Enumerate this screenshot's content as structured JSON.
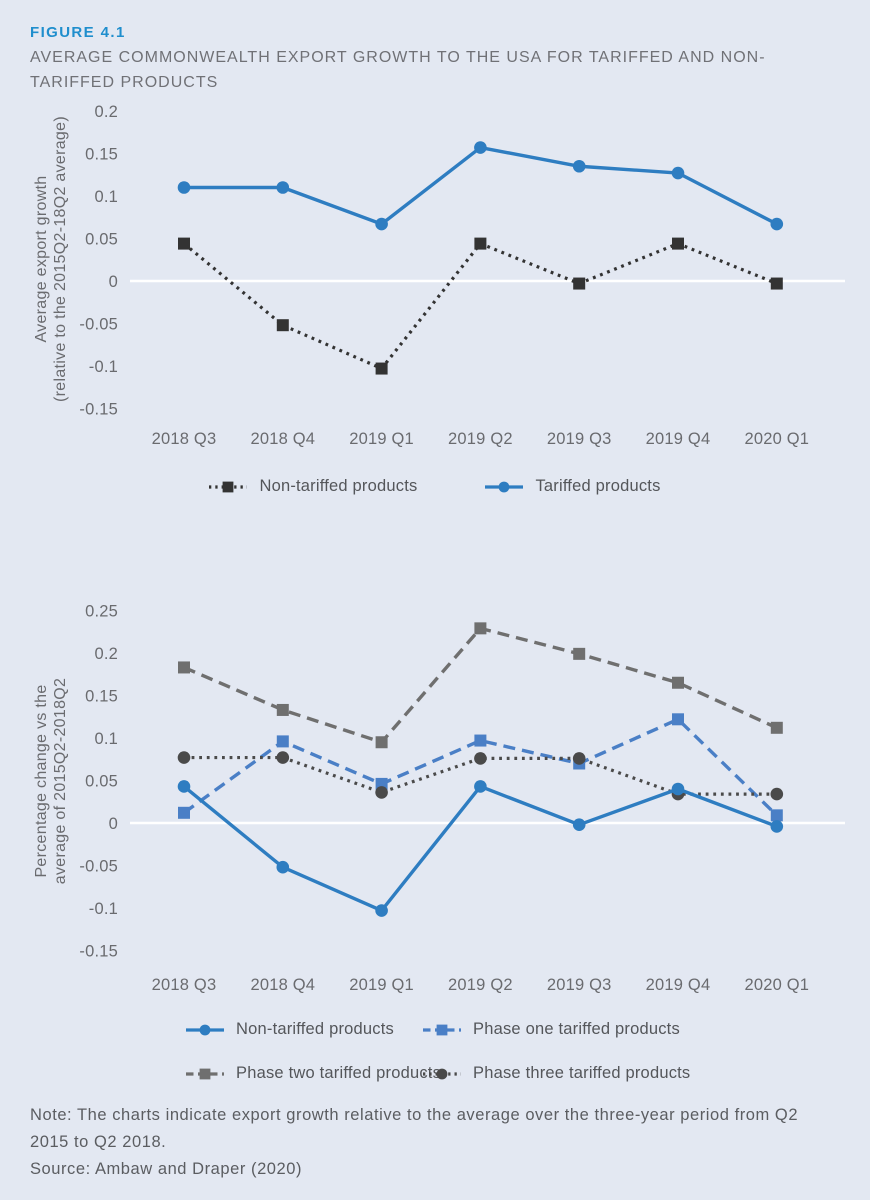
{
  "figure": {
    "label": "FIGURE 4.1",
    "title": "AVERAGE COMMONWEALTH EXPORT GROWTH TO THE USA FOR TARIFFED AND NON-TARIFFED PRODUCTS"
  },
  "note": {
    "text": "Note: The charts indicate export growth relative to the average over the three-year period from Q2 2015 to Q2 2018.",
    "source": "Source: Ambaw and Draper (2020)"
  },
  "colors": {
    "background": "#e3e8f2",
    "figure_label_blue": "#1f8ecd",
    "tariffed_blue": "#2e7dc1",
    "phase_one_blue": "#4a7fc6",
    "phase_two_gray": "#6f6f6f",
    "phase_three_dark": "#4a4a4a",
    "non_tariffed_black": "#333333",
    "zero_line": "#ffffff",
    "axis_text": "#6a6b6f"
  },
  "chart_data": [
    {
      "type": "line",
      "title": "",
      "ylabel_line1": "Average export growth",
      "ylabel_line2": "(relative to the 2015Q2-18Q2 average)",
      "xlabel": "",
      "categories": [
        "2018 Q3",
        "2018 Q4",
        "2019 Q1",
        "2019 Q2",
        "2019 Q3",
        "2019 Q4",
        "2020 Q1"
      ],
      "yticks": [
        0.2,
        0.15,
        0.1,
        0.05,
        0,
        -0.05,
        -0.1,
        -0.15
      ],
      "ylim": [
        -0.15,
        0.2
      ],
      "grid": false,
      "zero_reference_line": true,
      "legend_position": "bottom",
      "series": [
        {
          "name": "Non-tariffed products",
          "values": [
            0.044,
            -0.052,
            -0.103,
            0.044,
            -0.003,
            0.044,
            -0.003
          ],
          "color": "#333333",
          "line_style": "dotted",
          "marker": "square"
        },
        {
          "name": "Tariffed products",
          "values": [
            0.11,
            0.11,
            0.067,
            0.157,
            0.135,
            0.127,
            0.067
          ],
          "color": "#2e7dc1",
          "line_style": "solid",
          "marker": "circle"
        }
      ]
    },
    {
      "type": "line",
      "title": "",
      "ylabel_line1": "Percentage change vs the",
      "ylabel_line2": "average of 2015Q2-2018Q2",
      "xlabel": "",
      "categories": [
        "2018 Q3",
        "2018 Q4",
        "2019 Q1",
        "2019 Q2",
        "2019 Q3",
        "2019 Q4",
        "2020 Q1"
      ],
      "yticks": [
        0.25,
        0.2,
        0.15,
        0.1,
        0.05,
        0,
        -0.05,
        -0.1,
        -0.15
      ],
      "ylim": [
        -0.15,
        0.25
      ],
      "grid": false,
      "zero_reference_line": true,
      "legend_position": "bottom",
      "series": [
        {
          "name": "Non-tariffed products",
          "values": [
            0.043,
            -0.052,
            -0.103,
            0.043,
            -0.002,
            0.04,
            -0.004
          ],
          "color": "#2e7dc1",
          "line_style": "solid",
          "marker": "circle"
        },
        {
          "name": "Phase one tariffed products",
          "values": [
            0.012,
            0.096,
            0.046,
            0.097,
            0.07,
            0.122,
            0.009
          ],
          "color": "#4a7fc6",
          "line_style": "dashed",
          "marker": "square"
        },
        {
          "name": "Phase two tariffed products",
          "values": [
            0.183,
            0.133,
            0.095,
            0.229,
            0.199,
            0.165,
            0.112
          ],
          "color": "#6f6f6f",
          "line_style": "dashed",
          "marker": "square"
        },
        {
          "name": "Phase three tariffed products",
          "values": [
            0.077,
            0.077,
            0.036,
            0.076,
            0.076,
            0.034,
            0.034
          ],
          "color": "#4a4a4a",
          "line_style": "dotted",
          "marker": "circle"
        }
      ]
    }
  ]
}
